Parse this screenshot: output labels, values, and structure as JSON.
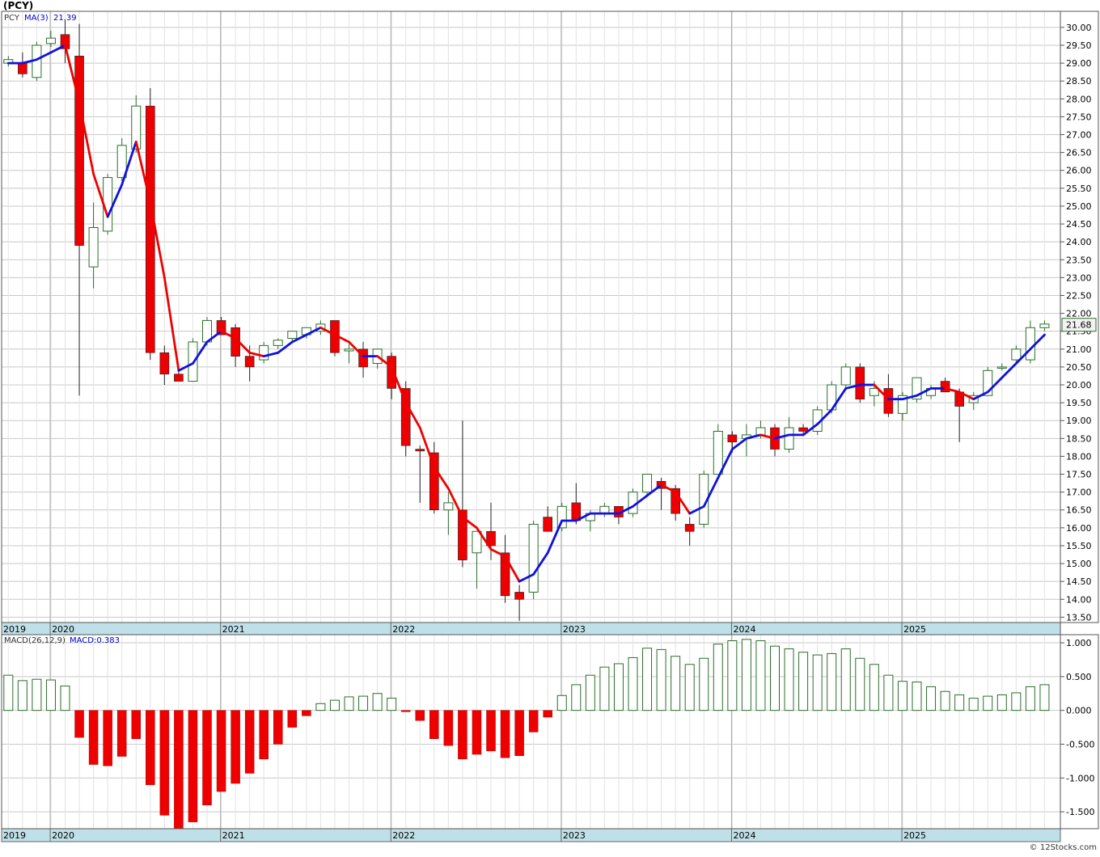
{
  "header": {
    "symbol_label": "(PCY)",
    "footer": "© 12Stocks.com"
  },
  "chart_data": {
    "type": "candlestick",
    "frequency": "monthly",
    "legend": {
      "symbol": "PCY",
      "ma_label": "MA(3)",
      "ma_value": "21.39",
      "macd_label": "MACD(26,12,9)",
      "macd_value": "MACD:0.383"
    },
    "last_price": "21.68",
    "years": [
      {
        "label": "2019",
        "index": -0.5
      },
      {
        "label": "2020",
        "index": 2.95
      },
      {
        "label": "2021",
        "index": 14.95
      },
      {
        "label": "2022",
        "index": 26.95
      },
      {
        "label": "2023",
        "index": 38.95
      },
      {
        "label": "2024",
        "index": 50.95
      },
      {
        "label": "2025",
        "index": 62.95
      }
    ],
    "price_axis": {
      "min": 13.35,
      "max": 30.45,
      "ticks": [
        "13.50",
        "14.00",
        "14.50",
        "15.00",
        "15.50",
        "16.00",
        "16.50",
        "17.00",
        "17.50",
        "18.00",
        "18.50",
        "19.00",
        "19.50",
        "20.00",
        "20.50",
        "21.00",
        "21.50",
        "22.00",
        "22.50",
        "23.00",
        "23.50",
        "24.00",
        "24.50",
        "25.00",
        "25.50",
        "26.00",
        "26.50",
        "27.00",
        "27.50",
        "28.00",
        "28.50",
        "29.00",
        "29.50",
        "30.00"
      ]
    },
    "macd_axis": {
      "min": -1.75,
      "max": 1.12,
      "ticks": [
        "1.000",
        "0.500",
        "0.000",
        "-0.500",
        "-1.000",
        "-1.500"
      ]
    },
    "candles": [
      [
        29.0,
        29.2,
        28.9,
        29.1
      ],
      [
        29.0,
        29.3,
        28.6,
        28.7
      ],
      [
        28.6,
        29.6,
        28.5,
        29.5
      ],
      [
        29.55,
        29.9,
        29.45,
        29.7
      ],
      [
        29.8,
        30.2,
        29.0,
        29.4
      ],
      [
        29.2,
        30.1,
        19.7,
        23.9
      ],
      [
        23.3,
        25.1,
        22.7,
        24.4
      ],
      [
        24.3,
        25.9,
        24.2,
        25.8
      ],
      [
        25.8,
        26.9,
        25.7,
        26.7
      ],
      [
        26.6,
        28.1,
        26.5,
        27.8
      ],
      [
        27.8,
        28.3,
        20.7,
        20.9
      ],
      [
        20.9,
        21.1,
        20.0,
        20.3
      ],
      [
        20.3,
        20.4,
        20.1,
        20.1
      ],
      [
        20.1,
        21.3,
        20.1,
        21.2
      ],
      [
        21.2,
        21.9,
        21.1,
        21.8
      ],
      [
        21.8,
        21.9,
        21.4,
        21.4
      ],
      [
        21.6,
        21.7,
        20.5,
        20.8
      ],
      [
        20.8,
        21.1,
        20.1,
        20.5
      ],
      [
        20.7,
        21.2,
        20.6,
        21.1
      ],
      [
        21.1,
        21.3,
        21.0,
        21.25
      ],
      [
        21.3,
        21.5,
        21.2,
        21.5
      ],
      [
        21.4,
        21.6,
        21.3,
        21.6
      ],
      [
        21.5,
        21.8,
        21.4,
        21.7
      ],
      [
        21.8,
        21.8,
        20.8,
        20.9
      ],
      [
        20.95,
        21.15,
        20.6,
        21.0
      ],
      [
        21.0,
        21.2,
        20.2,
        20.5
      ],
      [
        20.6,
        21.0,
        20.45,
        21.0
      ],
      [
        20.8,
        20.9,
        19.6,
        19.9
      ],
      [
        19.9,
        20.1,
        18.0,
        18.3
      ],
      [
        18.2,
        18.3,
        16.7,
        18.15
      ],
      [
        18.1,
        18.4,
        16.4,
        16.5
      ],
      [
        16.5,
        17.0,
        15.8,
        16.7
      ],
      [
        16.5,
        19.0,
        14.9,
        15.1
      ],
      [
        15.3,
        15.9,
        14.3,
        15.9
      ],
      [
        15.9,
        16.7,
        15.1,
        15.5
      ],
      [
        15.3,
        15.8,
        13.9,
        14.1
      ],
      [
        14.2,
        14.4,
        13.4,
        14.0
      ],
      [
        14.2,
        16.2,
        14.0,
        16.1
      ],
      [
        16.3,
        16.6,
        15.9,
        15.9
      ],
      [
        16.0,
        16.7,
        15.9,
        16.6
      ],
      [
        16.7,
        17.25,
        16.1,
        16.2
      ],
      [
        16.2,
        16.5,
        15.9,
        16.4
      ],
      [
        16.4,
        16.7,
        16.3,
        16.6
      ],
      [
        16.6,
        16.6,
        16.1,
        16.3
      ],
      [
        16.4,
        17.1,
        16.3,
        17.0
      ],
      [
        17.0,
        17.5,
        16.9,
        17.5
      ],
      [
        17.3,
        17.4,
        16.5,
        17.1
      ],
      [
        17.1,
        17.2,
        16.2,
        16.4
      ],
      [
        16.1,
        16.3,
        15.5,
        15.9
      ],
      [
        16.1,
        17.6,
        16.0,
        17.5
      ],
      [
        17.5,
        18.9,
        17.5,
        18.7
      ],
      [
        18.6,
        18.7,
        18.1,
        18.4
      ],
      [
        18.5,
        18.9,
        18.0,
        18.6
      ],
      [
        18.6,
        19.0,
        18.5,
        18.8
      ],
      [
        18.8,
        18.9,
        18.0,
        18.2
      ],
      [
        18.2,
        19.1,
        18.1,
        18.8
      ],
      [
        18.8,
        18.9,
        18.6,
        18.7
      ],
      [
        18.7,
        19.4,
        18.6,
        19.3
      ],
      [
        19.3,
        20.1,
        19.2,
        20.0
      ],
      [
        20.0,
        20.6,
        19.9,
        20.5
      ],
      [
        20.5,
        20.6,
        19.5,
        19.6
      ],
      [
        19.7,
        20.1,
        19.4,
        19.9
      ],
      [
        19.9,
        20.3,
        19.1,
        19.2
      ],
      [
        19.2,
        19.8,
        19.0,
        19.7
      ],
      [
        19.6,
        20.2,
        19.5,
        20.2
      ],
      [
        19.7,
        20.0,
        19.6,
        19.9
      ],
      [
        20.1,
        20.2,
        19.8,
        19.8
      ],
      [
        19.8,
        19.9,
        18.4,
        19.4
      ],
      [
        19.5,
        19.8,
        19.3,
        19.7
      ],
      [
        19.7,
        20.5,
        19.7,
        20.4
      ],
      [
        20.5,
        20.6,
        20.4,
        20.5
      ],
      [
        20.7,
        21.1,
        20.6,
        21.0
      ],
      [
        20.7,
        21.8,
        20.6,
        21.6
      ],
      [
        21.6,
        21.8,
        21.5,
        21.7
      ]
    ],
    "ma3": [
      29.0,
      29.0,
      29.1,
      29.3,
      29.5,
      27.9,
      25.9,
      24.7,
      25.6,
      26.8,
      25.1,
      23.0,
      20.4,
      20.6,
      21.2,
      21.5,
      21.3,
      20.9,
      20.8,
      20.9,
      21.2,
      21.4,
      21.6,
      21.4,
      21.2,
      20.8,
      20.8,
      20.5,
      19.5,
      18.8,
      17.7,
      17.1,
      16.3,
      16.0,
      15.4,
      15.2,
      14.5,
      14.7,
      15.3,
      16.2,
      16.2,
      16.4,
      16.4,
      16.4,
      16.6,
      16.9,
      17.2,
      17.0,
      16.4,
      16.6,
      17.4,
      18.2,
      18.5,
      18.6,
      18.5,
      18.6,
      18.6,
      18.9,
      19.3,
      19.9,
      20.0,
      20.0,
      19.6,
      19.6,
      19.7,
      19.9,
      19.9,
      19.8,
      19.6,
      19.8,
      20.2,
      20.6,
      21.0,
      21.4
    ],
    "macd_hist": [
      0.52,
      0.44,
      0.46,
      0.45,
      0.36,
      -0.4,
      -0.8,
      -0.82,
      -0.68,
      -0.42,
      -1.1,
      -1.55,
      -1.75,
      -1.65,
      -1.4,
      -1.2,
      -1.08,
      -0.93,
      -0.72,
      -0.5,
      -0.25,
      -0.08,
      0.1,
      0.15,
      0.2,
      0.21,
      0.25,
      0.18,
      -0.02,
      -0.15,
      -0.42,
      -0.52,
      -0.72,
      -0.65,
      -0.6,
      -0.7,
      -0.67,
      -0.32,
      -0.1,
      0.22,
      0.38,
      0.52,
      0.64,
      0.69,
      0.78,
      0.92,
      0.9,
      0.8,
      0.68,
      0.77,
      0.98,
      1.03,
      1.05,
      1.03,
      0.95,
      0.91,
      0.86,
      0.82,
      0.84,
      0.91,
      0.77,
      0.68,
      0.52,
      0.43,
      0.42,
      0.35,
      0.28,
      0.23,
      0.18,
      0.21,
      0.23,
      0.26,
      0.35,
      0.38
    ]
  }
}
